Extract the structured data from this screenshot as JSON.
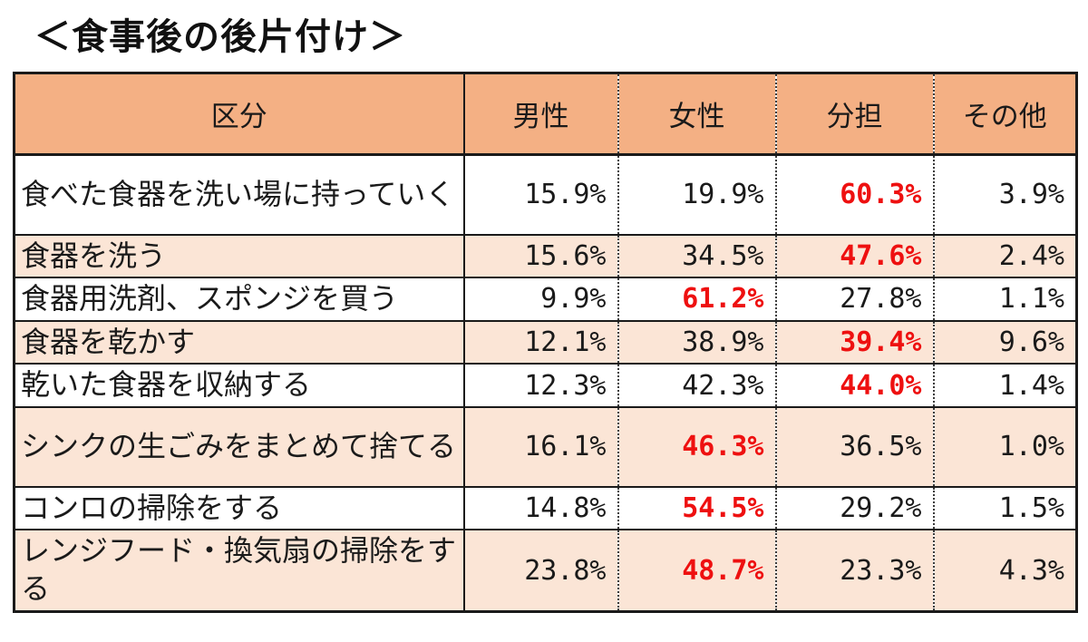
{
  "page_title": "＜食事後の後片付け＞",
  "table": {
    "columns": [
      "区分",
      "男性",
      "女性",
      "分担",
      "その他"
    ],
    "rows": [
      {
        "label": "食べた食器を洗い場に持っていく",
        "values": [
          "15.9%",
          "19.9%",
          "60.3%",
          "3.9%"
        ],
        "highlight_index": 2
      },
      {
        "label": "食器を洗う",
        "values": [
          "15.6%",
          "34.5%",
          "47.6%",
          "2.4%"
        ],
        "highlight_index": 2
      },
      {
        "label": "食器用洗剤、スポンジを買う",
        "values": [
          "9.9%",
          "61.2%",
          "27.8%",
          "1.1%"
        ],
        "highlight_index": 1
      },
      {
        "label": "食器を乾かす",
        "values": [
          "12.1%",
          "38.9%",
          "39.4%",
          "9.6%"
        ],
        "highlight_index": 2
      },
      {
        "label": "乾いた食器を収納する",
        "values": [
          "12.3%",
          "42.3%",
          "44.0%",
          "1.4%"
        ],
        "highlight_index": 2
      },
      {
        "label": "シンクの生ごみをまとめて捨てる",
        "values": [
          "16.1%",
          "46.3%",
          "36.5%",
          "1.0%"
        ],
        "highlight_index": 1
      },
      {
        "label": "コンロの掃除をする",
        "values": [
          "14.8%",
          "54.5%",
          "29.2%",
          "1.5%"
        ],
        "highlight_index": 1
      },
      {
        "label": "レンジフード・換気扇の掃除をする",
        "values": [
          "23.8%",
          "48.7%",
          "23.3%",
          "4.3%"
        ],
        "highlight_index": 1
      }
    ]
  },
  "colors": {
    "header_bg": "#F4B084",
    "row_alt_bg": "#FBE5D6",
    "row_bg": "#FFFFFF",
    "border": "#1A1A1A",
    "text": "#1A1A1A",
    "highlight_text": "#EE1010"
  },
  "chart_data": {
    "type": "table",
    "title": "＜食事後の後片付け＞",
    "categories": [
      "食べた食器を洗い場に持っていく",
      "食器を洗う",
      "食器用洗剤、スポンジを買う",
      "食器を乾かす",
      "乾いた食器を収納する",
      "シンクの生ごみをまとめて捨てる",
      "コンロの掃除をする",
      "レンジフード・換気扇の掃除をする"
    ],
    "series": [
      {
        "name": "男性",
        "values": [
          15.9,
          15.6,
          9.9,
          12.1,
          12.3,
          16.1,
          14.8,
          23.8
        ]
      },
      {
        "name": "女性",
        "values": [
          19.9,
          34.5,
          61.2,
          38.9,
          42.3,
          46.3,
          54.5,
          48.7
        ]
      },
      {
        "name": "分担",
        "values": [
          60.3,
          47.6,
          27.8,
          39.4,
          44.0,
          36.5,
          29.2,
          23.3
        ]
      },
      {
        "name": "その他",
        "values": [
          3.9,
          2.4,
          1.1,
          9.6,
          1.4,
          1.0,
          1.5,
          4.3
        ]
      }
    ],
    "unit": "%",
    "layout_hints": {
      "legend_position": "none",
      "row_max_highlighted_red_bold": true,
      "alternating_row_shading": true
    }
  }
}
